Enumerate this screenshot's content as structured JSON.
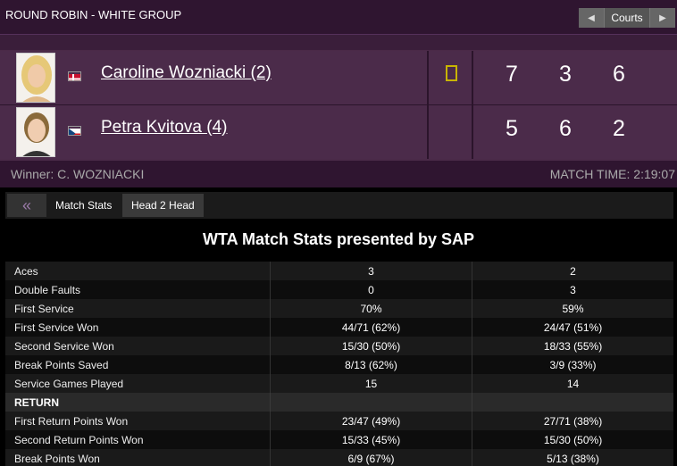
{
  "header": {
    "round_title": "ROUND ROBIN - WHITE GROUP",
    "courts_label": "Courts",
    "prev_icon": "chevron-left-icon",
    "next_icon": "chevron-right-icon"
  },
  "players": [
    {
      "name": "Caroline Wozniacki (2)",
      "flag": "denmark-flag-icon",
      "sets": [
        "7",
        "3",
        "6"
      ],
      "serving": true
    },
    {
      "name": "Petra Kvitova (4)",
      "flag": "czech-flag-icon",
      "sets": [
        "5",
        "6",
        "2"
      ],
      "serving": false
    }
  ],
  "winner": "Winner: C. WOZNIACKI",
  "match_time": "MATCH TIME: 2:19:07",
  "tabs": {
    "back_icon": "double-chevron-left-icon",
    "match_stats": "Match Stats",
    "head2head": "Head 2 Head"
  },
  "stats_heading": "WTA Match Stats presented by SAP",
  "serve_stats": [
    {
      "label": "Aces",
      "p1": "3",
      "p2": "2"
    },
    {
      "label": "Double Faults",
      "p1": "0",
      "p2": "3"
    },
    {
      "label": "First Service",
      "p1": "70%",
      "p2": "59%"
    },
    {
      "label": "First Service Won",
      "p1": "44/71 (62%)",
      "p2": "24/47 (51%)"
    },
    {
      "label": "Second Service Won",
      "p1": "15/30 (50%)",
      "p2": "18/33 (55%)"
    },
    {
      "label": "Break Points Saved",
      "p1": "8/13 (62%)",
      "p2": "3/9 (33%)"
    },
    {
      "label": "Service Games Played",
      "p1": "15",
      "p2": "14"
    }
  ],
  "return_section": "RETURN",
  "return_stats": [
    {
      "label": "First Return Points Won",
      "p1": "23/47 (49%)",
      "p2": "27/71 (38%)"
    },
    {
      "label": "Second Return Points Won",
      "p1": "15/33 (45%)",
      "p2": "15/30 (50%)"
    },
    {
      "label": "Break Points Won",
      "p1": "6/9 (67%)",
      "p2": "5/13 (38%)"
    }
  ],
  "colors": {
    "panel": "#4a2a48",
    "title_bar": "#2f1530",
    "serve_indicator": "#c8b400"
  }
}
